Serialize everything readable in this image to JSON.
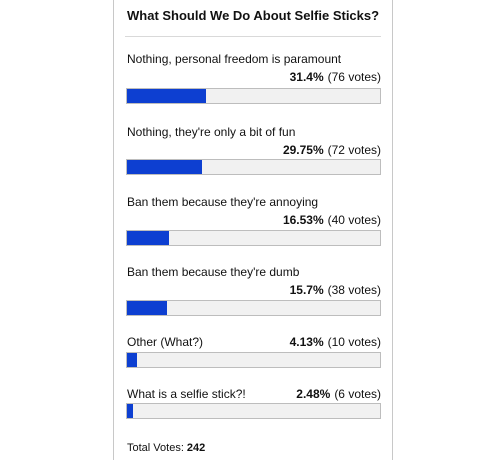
{
  "poll": {
    "title": "What Should We Do About Selfie Sticks?",
    "bar_color": "#0d3fd1",
    "options": [
      {
        "label": "Nothing, personal freedom is paramount",
        "percent_text": "31.4%",
        "votes_text": "(76 votes)",
        "fraction": 0.314
      },
      {
        "label": "Nothing, they're only a bit of fun",
        "percent_text": "29.75%",
        "votes_text": "(72 votes)",
        "fraction": 0.2975
      },
      {
        "label": "Ban them because they're annoying",
        "percent_text": "16.53%",
        "votes_text": "(40 votes)",
        "fraction": 0.1653
      },
      {
        "label": "Ban them because they're dumb",
        "percent_text": "15.7%",
        "votes_text": "(38 votes)",
        "fraction": 0.157
      },
      {
        "label": "Other (What?)",
        "percent_text": "4.13%",
        "votes_text": "(10 votes)",
        "fraction": 0.0413
      },
      {
        "label": "What is a selfie stick?!",
        "percent_text": "2.48%",
        "votes_text": "(6 votes)",
        "fraction": 0.0248
      }
    ],
    "total_label": "Total Votes:",
    "total_value": "242"
  }
}
